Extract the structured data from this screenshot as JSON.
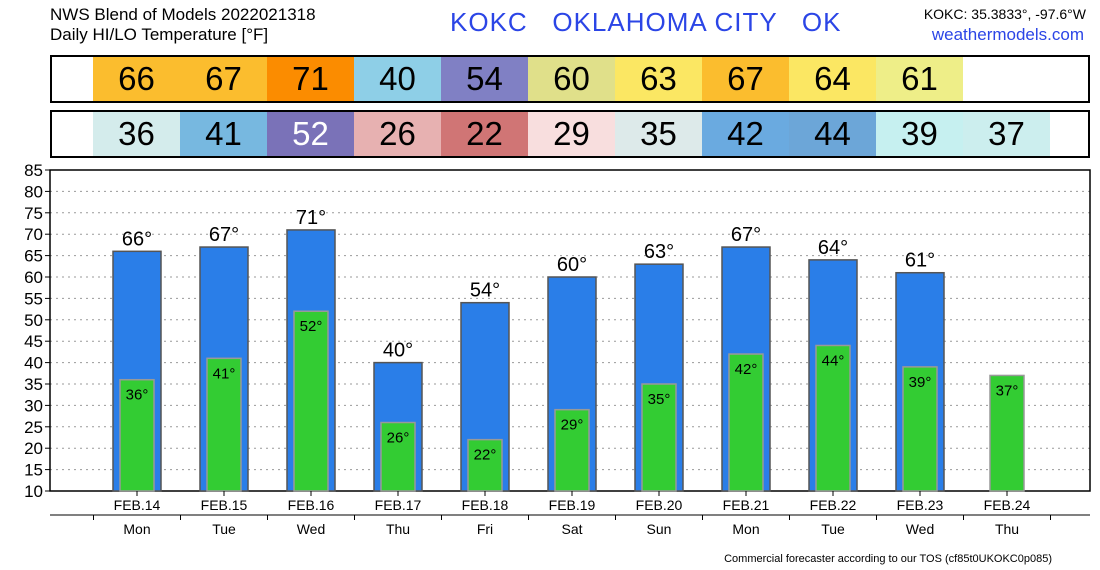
{
  "header": {
    "title_line1": "NWS Blend of Models 2022021318",
    "title_line2": "Daily HI/LO Temperature [°F]",
    "station": "KOKC   OKLAHOMA CITY   OK",
    "coords": "KOKC: 35.3833°, -97.6°W",
    "site": "weathermodels.com"
  },
  "strips": {
    "high": [
      {
        "value": "66",
        "color": "#fbbd2e"
      },
      {
        "value": "67",
        "color": "#fbbd2e"
      },
      {
        "value": "71",
        "color": "#fb8c00"
      },
      {
        "value": "40",
        "color": "#8ecfe7"
      },
      {
        "value": "54",
        "color": "#8080c4"
      },
      {
        "value": "60",
        "color": "#e0e08a"
      },
      {
        "value": "63",
        "color": "#fbe763"
      },
      {
        "value": "67",
        "color": "#fbbd2e"
      },
      {
        "value": "64",
        "color": "#fbe763"
      },
      {
        "value": "61",
        "color": "#eeee88"
      }
    ],
    "low": [
      {
        "value": "36",
        "color": "#d4ecec",
        "text_color": "#000000"
      },
      {
        "value": "41",
        "color": "#77b8e0",
        "text_color": "#000000"
      },
      {
        "value": "52",
        "color": "#7a72b8",
        "text_color": "#ffffff"
      },
      {
        "value": "26",
        "color": "#e7b1b1",
        "text_color": "#000000"
      },
      {
        "value": "22",
        "color": "#d07575",
        "text_color": "#000000"
      },
      {
        "value": "29",
        "color": "#f8dede",
        "text_color": "#000000"
      },
      {
        "value": "35",
        "color": "#ddeaea",
        "text_color": "#000000"
      },
      {
        "value": "42",
        "color": "#6aaae0",
        "text_color": "#000000"
      },
      {
        "value": "44",
        "color": "#6ca6d8",
        "text_color": "#000000"
      },
      {
        "value": "39",
        "color": "#c6f0f0",
        "text_color": "#000000"
      },
      {
        "value": "37",
        "color": "#cceeee",
        "text_color": "#000000"
      }
    ]
  },
  "chart_data": {
    "type": "bar",
    "categories": [
      "FEB.14",
      "FEB.15",
      "FEB.16",
      "FEB.17",
      "FEB.18",
      "FEB.19",
      "FEB.20",
      "FEB.21",
      "FEB.22",
      "FEB.23",
      "FEB.24"
    ],
    "weekdays": [
      "Mon",
      "Tue",
      "Wed",
      "Thu",
      "Fri",
      "Sat",
      "Sun",
      "Mon",
      "Tue",
      "Wed",
      "Thu"
    ],
    "series": [
      {
        "values": [
          66,
          67,
          71,
          40,
          54,
          60,
          63,
          67,
          64,
          61,
          null
        ],
        "color": "#2a7ee8",
        "labels": [
          "66°",
          "67°",
          "71°",
          "40°",
          "54°",
          "60°",
          "63°",
          "67°",
          "64°",
          "61°",
          ""
        ]
      },
      {
        "values": [
          36,
          41,
          52,
          26,
          22,
          29,
          35,
          42,
          44,
          39,
          37
        ],
        "color": "#33cc33",
        "labels": [
          "36°",
          "41°",
          "52°",
          "26°",
          "22°",
          "29°",
          "35°",
          "42°",
          "44°",
          "39°",
          "37°"
        ]
      }
    ],
    "yticks": [
      10,
      15,
      20,
      25,
      30,
      35,
      40,
      45,
      50,
      55,
      60,
      65,
      70,
      75,
      80,
      85
    ],
    "ylim": [
      10,
      85
    ],
    "grid": true,
    "legend": "none"
  },
  "footer": "Commercial forecaster according to our TOS (cf85t0UKOKC0p085)"
}
